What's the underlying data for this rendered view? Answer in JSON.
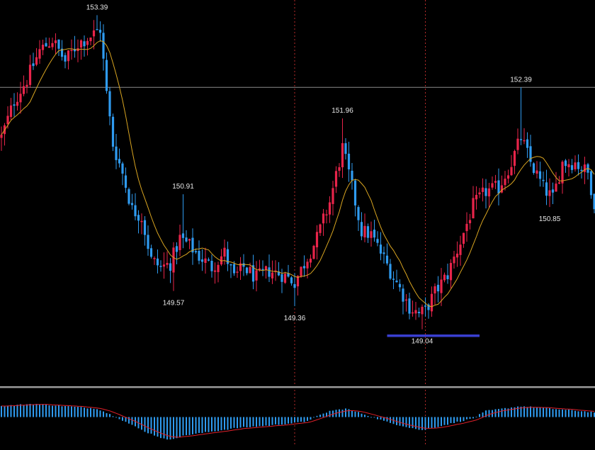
{
  "colors": {
    "background": "#000000",
    "bull": "#e8244a",
    "bear": "#2f9bf0",
    "ma_line": "#d9a521",
    "level_line": "#8a8a8a",
    "support_line": "#3a3fd0",
    "vertical_marker": "#b52a2a",
    "hist_bar": "#2f9bf0",
    "signal_line": "#e0202a",
    "label_text": "#e6e6e6",
    "panel_divider": "#9a9a9a"
  },
  "chart_data": [
    {
      "type": "candlestick",
      "title": "",
      "xlabel": "",
      "ylabel": "",
      "ylim": [
        148.3,
        153.6
      ],
      "grid": false,
      "legend": "none",
      "horizontal_level": 152.39,
      "support_level": {
        "value": 148.95,
        "x_from": 121,
        "x_to": 150
      },
      "vertical_markers_at_index": [
        92,
        133
      ],
      "price_labels": [
        {
          "text": "153.39",
          "index": 30,
          "position": "above"
        },
        {
          "text": "150.91",
          "index": 57,
          "position": "above"
        },
        {
          "text": "149.57",
          "index": 54,
          "position": "below"
        },
        {
          "text": "151.96",
          "index": 107,
          "position": "above"
        },
        {
          "text": "149.36",
          "index": 92,
          "position": "below"
        },
        {
          "text": "149.04",
          "index": 132,
          "position": "below"
        },
        {
          "text": "152.39",
          "index": 163,
          "position": "above"
        },
        {
          "text": "150.85",
          "index": 172,
          "position": "below"
        }
      ],
      "anchors": [
        [
          0,
          151.7
        ],
        [
          4,
          152.2
        ],
        [
          8,
          152.5
        ],
        [
          12,
          152.9
        ],
        [
          16,
          153.05
        ],
        [
          20,
          152.75
        ],
        [
          24,
          153.0
        ],
        [
          28,
          153.1
        ],
        [
          31,
          153.2
        ],
        [
          33,
          152.3
        ],
        [
          35,
          151.6
        ],
        [
          38,
          151.2
        ],
        [
          41,
          150.7
        ],
        [
          44,
          150.6
        ],
        [
          47,
          150.0
        ],
        [
          50,
          149.9
        ],
        [
          53,
          149.95
        ],
        [
          56,
          150.3
        ],
        [
          59,
          150.2
        ],
        [
          62,
          150.05
        ],
        [
          66,
          149.9
        ],
        [
          70,
          150.1
        ],
        [
          73,
          149.75
        ],
        [
          76,
          149.9
        ],
        [
          80,
          149.75
        ],
        [
          84,
          149.85
        ],
        [
          88,
          149.8
        ],
        [
          92,
          149.7
        ],
        [
          95,
          149.95
        ],
        [
          99,
          150.3
        ],
        [
          103,
          150.8
        ],
        [
          107,
          151.55
        ],
        [
          110,
          151.0
        ],
        [
          113,
          150.4
        ],
        [
          116,
          150.35
        ],
        [
          119,
          150.1
        ],
        [
          122,
          149.85
        ],
        [
          125,
          149.6
        ],
        [
          128,
          149.35
        ],
        [
          131,
          149.25
        ],
        [
          133,
          149.3
        ],
        [
          136,
          149.55
        ],
        [
          140,
          149.8
        ],
        [
          144,
          150.25
        ],
        [
          148,
          150.75
        ],
        [
          152,
          150.95
        ],
        [
          156,
          151.0
        ],
        [
          160,
          151.35
        ],
        [
          163,
          151.7
        ],
        [
          166,
          151.35
        ],
        [
          170,
          151.0
        ],
        [
          173,
          150.85
        ],
        [
          176,
          151.35
        ],
        [
          180,
          151.35
        ],
        [
          184,
          151.2
        ],
        [
          186,
          150.8
        ]
      ]
    },
    {
      "type": "histogram_with_signal",
      "title": "",
      "ylim": [
        -1.1,
        1.1
      ],
      "anchors": [
        [
          0,
          0.45
        ],
        [
          10,
          0.55
        ],
        [
          20,
          0.45
        ],
        [
          30,
          0.35
        ],
        [
          36,
          0.0
        ],
        [
          45,
          -0.6
        ],
        [
          52,
          -0.95
        ],
        [
          58,
          -0.75
        ],
        [
          66,
          -0.6
        ],
        [
          74,
          -0.45
        ],
        [
          84,
          -0.35
        ],
        [
          95,
          -0.2
        ],
        [
          103,
          0.25
        ],
        [
          108,
          0.35
        ],
        [
          113,
          0.15
        ],
        [
          122,
          -0.25
        ],
        [
          132,
          -0.55
        ],
        [
          140,
          -0.3
        ],
        [
          148,
          -0.05
        ],
        [
          152,
          0.25
        ],
        [
          163,
          0.45
        ],
        [
          172,
          0.35
        ],
        [
          186,
          0.2
        ]
      ]
    }
  ]
}
